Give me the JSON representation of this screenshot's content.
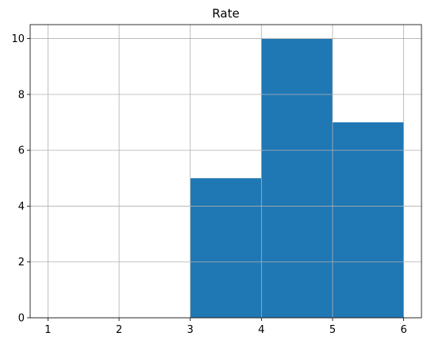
{
  "chart_data": {
    "type": "bar",
    "title": "Rate",
    "xlabel": "",
    "ylabel": "",
    "bins": [
      {
        "x0": 3,
        "x1": 4,
        "value": 5
      },
      {
        "x0": 4,
        "x1": 5,
        "value": 10
      },
      {
        "x0": 5,
        "x1": 6,
        "value": 7
      }
    ],
    "xlim": [
      0.75,
      6.25
    ],
    "ylim": [
      0,
      10.5
    ],
    "xticks": [
      1,
      2,
      3,
      4,
      5,
      6
    ],
    "yticks": [
      0,
      2,
      4,
      6,
      8,
      10
    ],
    "grid": true,
    "colors": {
      "bar": "#1f77b4",
      "grid": "#b0b0b0"
    }
  }
}
